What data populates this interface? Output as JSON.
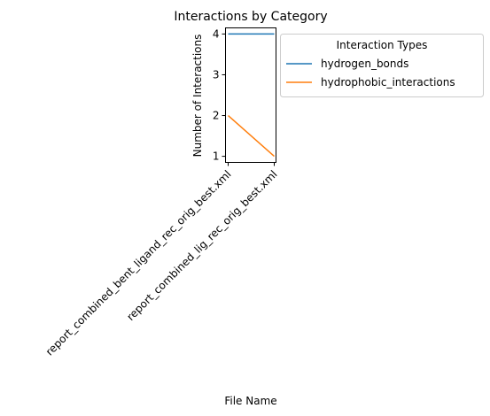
{
  "chart_data": {
    "type": "line",
    "title": "Interactions by Category",
    "xlabel": "File Name",
    "ylabel": "Number of Interactions",
    "categories": [
      "report_combined_bent_ligand_rec_orig_best.xml",
      "report_combined_lig_rec_orig_best.xml"
    ],
    "series": [
      {
        "name": "hydrogen_bonds",
        "values": [
          4,
          4
        ],
        "color": "#1f77b4"
      },
      {
        "name": "hydrophobic_interactions",
        "values": [
          2,
          1
        ],
        "color": "#ff7f0e"
      }
    ],
    "ylim": [
      0.85,
      4.15
    ],
    "yticks": [
      1,
      2,
      3,
      4
    ],
    "grid": false,
    "legend": {
      "title": "Interaction Types",
      "placement": "outside-top-right"
    }
  }
}
